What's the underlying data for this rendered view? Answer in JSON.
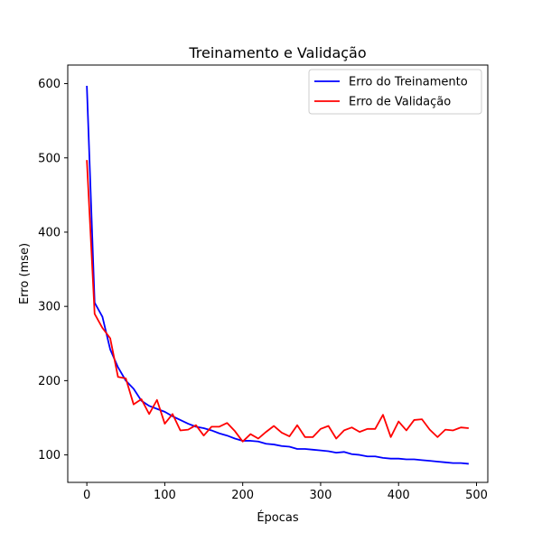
{
  "chart_data": {
    "type": "line",
    "title": "Treinamento e Validação",
    "xlabel": "Épocas",
    "ylabel": "Erro (mse)",
    "xlim": [
      -24.5,
      514.5
    ],
    "ylim": [
      63,
      625
    ],
    "x_ticks": [
      0,
      100,
      200,
      300,
      400,
      500
    ],
    "y_ticks": [
      100,
      200,
      300,
      400,
      500,
      600
    ],
    "x_tick_labels": [
      "0",
      "100",
      "200",
      "300",
      "400",
      "500"
    ],
    "y_tick_labels": [
      "100",
      "200",
      "300",
      "400",
      "500",
      "600"
    ],
    "grid": false,
    "legend_position": "top-right",
    "x": [
      0,
      10,
      20,
      30,
      40,
      50,
      60,
      70,
      80,
      90,
      100,
      110,
      120,
      130,
      140,
      150,
      160,
      170,
      180,
      190,
      200,
      210,
      220,
      230,
      240,
      250,
      260,
      270,
      280,
      290,
      300,
      310,
      320,
      330,
      340,
      350,
      360,
      370,
      380,
      390,
      400,
      410,
      420,
      430,
      440,
      450,
      460,
      470,
      480,
      490
    ],
    "series": [
      {
        "name": "Erro do Treinamento",
        "color": "#0000ff",
        "values": [
          597,
          305,
          286,
          242,
          218,
          200,
          189,
          173,
          166,
          162,
          158,
          152,
          147,
          142,
          138,
          136,
          133,
          129,
          126,
          122,
          119,
          119,
          118,
          115,
          114,
          112,
          111,
          108,
          108,
          107,
          106,
          105,
          103,
          104,
          101,
          100,
          98,
          98,
          96,
          95,
          95,
          94,
          94,
          93,
          92,
          91,
          90,
          89,
          89,
          88
        ]
      },
      {
        "name": "Erro de Validação",
        "color": "#ff0000",
        "values": [
          497,
          290,
          271,
          257,
          205,
          203,
          168,
          175,
          155,
          174,
          142,
          155,
          133,
          134,
          140,
          126,
          138,
          138,
          143,
          132,
          118,
          128,
          122,
          131,
          139,
          130,
          125,
          140,
          124,
          124,
          135,
          139,
          122,
          133,
          137,
          131,
          135,
          135,
          154,
          124,
          145,
          133,
          147,
          148,
          134,
          124,
          134,
          133,
          137,
          136
        ]
      }
    ]
  }
}
